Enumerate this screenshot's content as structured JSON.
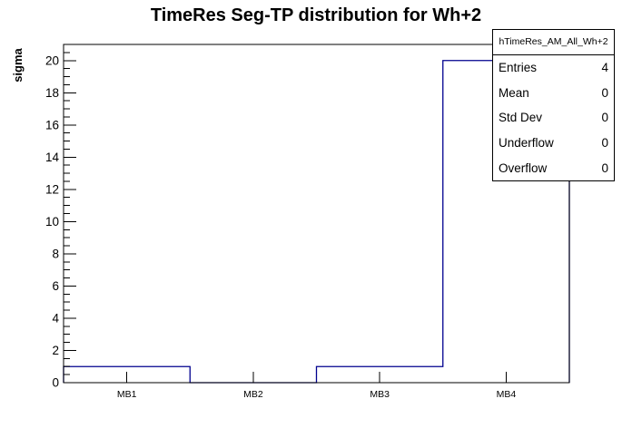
{
  "title": "TimeRes Seg-TP distribution for Wh+2",
  "y_axis_title": "sigma",
  "stats_box": {
    "header": "hTimeRes_AM_All_Wh+2",
    "rows": [
      {
        "label": "Entries",
        "value": "4"
      },
      {
        "label": "Mean",
        "value": "0"
      },
      {
        "label": "Std Dev",
        "value": "0"
      },
      {
        "label": "Underflow",
        "value": "0"
      },
      {
        "label": "Overflow",
        "value": "0"
      }
    ]
  },
  "colors": {
    "histogram_line": "#00008f",
    "axis_line": "#000000",
    "background": "#ffffff"
  },
  "chart_data": {
    "type": "bar",
    "style": "ROOT step-histogram outline, unfilled",
    "categories": [
      "MB1",
      "MB2",
      "MB3",
      "MB4"
    ],
    "values": [
      1,
      0,
      1,
      20
    ],
    "title": "TimeRes Seg-TP distribution for Wh+2",
    "xlabel": "",
    "ylabel": "sigma",
    "ylim": [
      0,
      21
    ],
    "y_major_tick_step": 2,
    "y_minor_tick_step": 0.5,
    "y_tick_labels": [
      "0",
      "2",
      "4",
      "6",
      "8",
      "10",
      "12",
      "14",
      "16",
      "18",
      "20"
    ],
    "grid": false,
    "legend_position": "none"
  }
}
